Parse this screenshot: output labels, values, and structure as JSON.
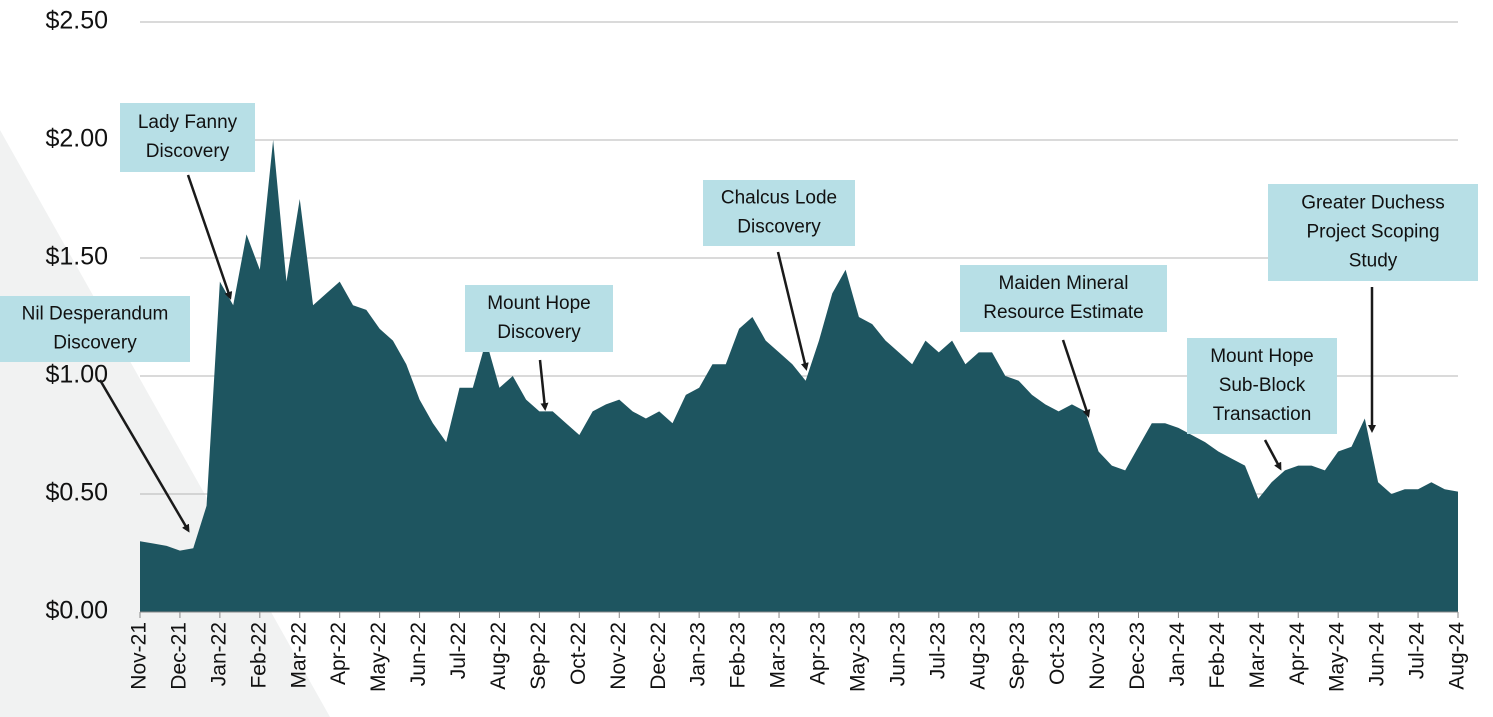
{
  "chart_data": {
    "type": "area",
    "categories": [
      "Nov-21",
      null,
      null,
      "Dec-21",
      null,
      null,
      "Jan-22",
      null,
      null,
      "Feb-22",
      null,
      null,
      "Mar-22",
      null,
      null,
      "Apr-22",
      null,
      null,
      "May-22",
      null,
      null,
      "Jun-22",
      null,
      null,
      "Jul-22",
      null,
      null,
      "Aug-22",
      null,
      null,
      "Sep-22",
      null,
      null,
      "Oct-22",
      null,
      null,
      "Nov-22",
      null,
      null,
      "Dec-22",
      null,
      null,
      "Jan-23",
      null,
      null,
      "Feb-23",
      null,
      null,
      "Mar-23",
      null,
      null,
      "Apr-23",
      null,
      null,
      "May-23",
      null,
      null,
      "Jun-23",
      null,
      null,
      "Jul-23",
      null,
      null,
      "Aug-23",
      null,
      null,
      "Sep-23",
      null,
      null,
      "Oct-23",
      null,
      null,
      "Nov-23",
      null,
      null,
      "Dec-23",
      null,
      null,
      "Jan-24",
      null,
      null,
      "Feb-24",
      null,
      null,
      "Mar-24",
      null,
      null,
      "Apr-24",
      null,
      null,
      "May-24",
      null,
      null,
      "Jun-24",
      null,
      null,
      "Jul-24",
      null,
      null,
      "Aug-24"
    ],
    "series": [
      {
        "color": "#1e5560",
        "values": [
          0.3,
          0.29,
          0.28,
          0.26,
          0.27,
          0.45,
          1.4,
          1.3,
          1.6,
          1.45,
          2.0,
          1.4,
          1.75,
          1.3,
          1.35,
          1.4,
          1.3,
          1.28,
          1.2,
          1.15,
          1.05,
          0.9,
          0.8,
          0.72,
          0.95,
          0.95,
          1.15,
          0.95,
          1.0,
          0.9,
          0.85,
          0.85,
          0.8,
          0.75,
          0.85,
          0.88,
          0.9,
          0.85,
          0.82,
          0.85,
          0.8,
          0.92,
          0.95,
          1.05,
          1.05,
          1.2,
          1.25,
          1.15,
          1.1,
          1.05,
          0.98,
          1.15,
          1.35,
          1.45,
          1.25,
          1.22,
          1.15,
          1.1,
          1.05,
          1.15,
          1.1,
          1.15,
          1.05,
          1.1,
          1.1,
          1.0,
          0.98,
          0.92,
          0.88,
          0.85,
          0.88,
          0.85,
          0.68,
          0.62,
          0.6,
          0.7,
          0.8,
          0.8,
          0.78,
          0.75,
          0.72,
          0.68,
          0.65,
          0.62,
          0.48,
          0.55,
          0.6,
          0.62,
          0.62,
          0.6,
          0.68,
          0.7,
          0.82,
          0.55,
          0.5,
          0.52,
          0.52,
          0.55,
          0.52,
          0.51
        ]
      }
    ],
    "ylim": [
      0,
      2.5
    ],
    "yticks": [
      {
        "value": 0,
        "label": "$0.00"
      },
      {
        "value": 0.5,
        "label": "$0.50"
      },
      {
        "value": 1,
        "label": "$1.00"
      },
      {
        "value": 1.5,
        "label": "$1.50"
      },
      {
        "value": 2,
        "label": "$2.00"
      },
      {
        "value": 2.5,
        "label": "$2.50"
      }
    ],
    "grid": true,
    "annotations": [
      {
        "lines": [
          "Nil Desperandum",
          "Discovery"
        ]
      },
      {
        "lines": [
          "Lady Fanny",
          "Discovery"
        ]
      },
      {
        "lines": [
          "Mount Hope",
          "Discovery"
        ]
      },
      {
        "lines": [
          "Chalcus Lode",
          "Discovery"
        ]
      },
      {
        "lines": [
          "Maiden Mineral",
          "Resource Estimate"
        ]
      },
      {
        "lines": [
          "Mount Hope",
          "Sub-Block",
          "Transaction"
        ]
      },
      {
        "lines": [
          "Greater Duchess",
          "Project Scoping",
          "Study"
        ]
      }
    ]
  }
}
